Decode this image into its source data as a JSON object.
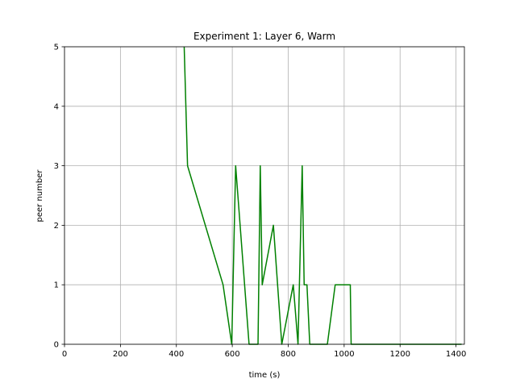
{
  "chart_data": {
    "type": "line",
    "title": "Experiment 1: Layer 6, Warm",
    "xlabel": "time (s)",
    "ylabel": "peer number",
    "xlim": [
      0,
      1430
    ],
    "ylim": [
      0,
      5
    ],
    "xticks": [
      0,
      200,
      400,
      600,
      800,
      1000,
      1200,
      1400
    ],
    "yticks": [
      0,
      1,
      2,
      3,
      4,
      5
    ],
    "grid": true,
    "series": [
      {
        "color": "#008000",
        "x": [
          428,
          440,
          567,
          598,
          612,
          660,
          690,
          692,
          700,
          707,
          747,
          777,
          818,
          835,
          850,
          857,
          867,
          877,
          880,
          940,
          968,
          1017,
          1022,
          1025,
          1035,
          1420
        ],
        "y": [
          5,
          3,
          1,
          0,
          3,
          0,
          0,
          0,
          3,
          1,
          2,
          0,
          1,
          0,
          3,
          1,
          1,
          0,
          0,
          0,
          1,
          1,
          1,
          0,
          0,
          0
        ]
      }
    ]
  }
}
